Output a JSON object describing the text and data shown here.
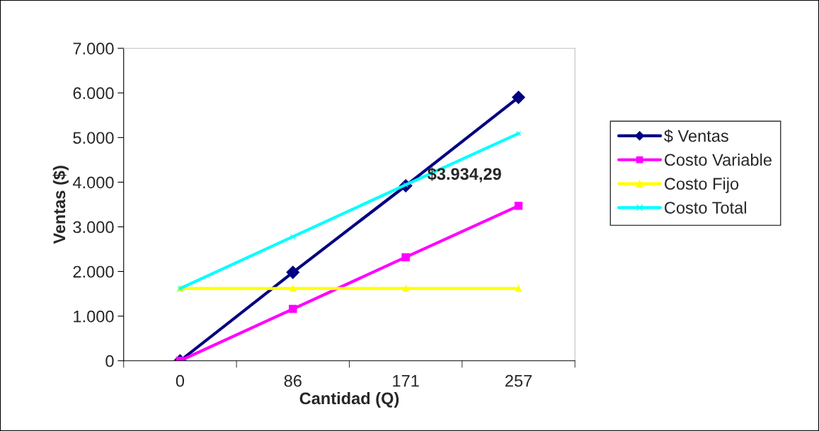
{
  "chart_data": {
    "type": "line",
    "xlabel": "Cantidad (Q)",
    "ylabel": "Ventas ($)",
    "categories": [
      "0",
      "86",
      "171",
      "257"
    ],
    "series": [
      {
        "name": "$ Ventas",
        "color": "#000080",
        "marker": "diamond",
        "values": [
          0,
          1980,
          3920,
          5900
        ]
      },
      {
        "name": "Costo Variable",
        "color": "#ff00ff",
        "marker": "square",
        "values": [
          0,
          1160,
          2320,
          3470
        ]
      },
      {
        "name": "Costo Fijo",
        "color": "#ffff00",
        "marker": "triangle",
        "values": [
          1620,
          1620,
          1620,
          1620
        ]
      },
      {
        "name": "Costo Total",
        "color": "#00ffff",
        "marker": "cross",
        "values": [
          1620,
          2780,
          3940,
          5090
        ]
      }
    ],
    "ylim": [
      0,
      7000
    ],
    "yticks": [
      0,
      {
        "value": 1000,
        "label": "1.000"
      },
      {
        "value": 2000,
        "label": "2.000"
      },
      {
        "value": 3000,
        "label": "3.000"
      },
      {
        "value": 4000,
        "label": "4.000"
      },
      {
        "value": 5000,
        "label": "5.000"
      },
      {
        "value": 6000,
        "label": "6.000"
      },
      {
        "value": 7000,
        "label": "7.000"
      }
    ],
    "annotations": [
      {
        "text": "$3.934,29",
        "x": "171",
        "y": 3934.29
      }
    ],
    "legend": "right",
    "grid": false,
    "line_style": "solid"
  }
}
